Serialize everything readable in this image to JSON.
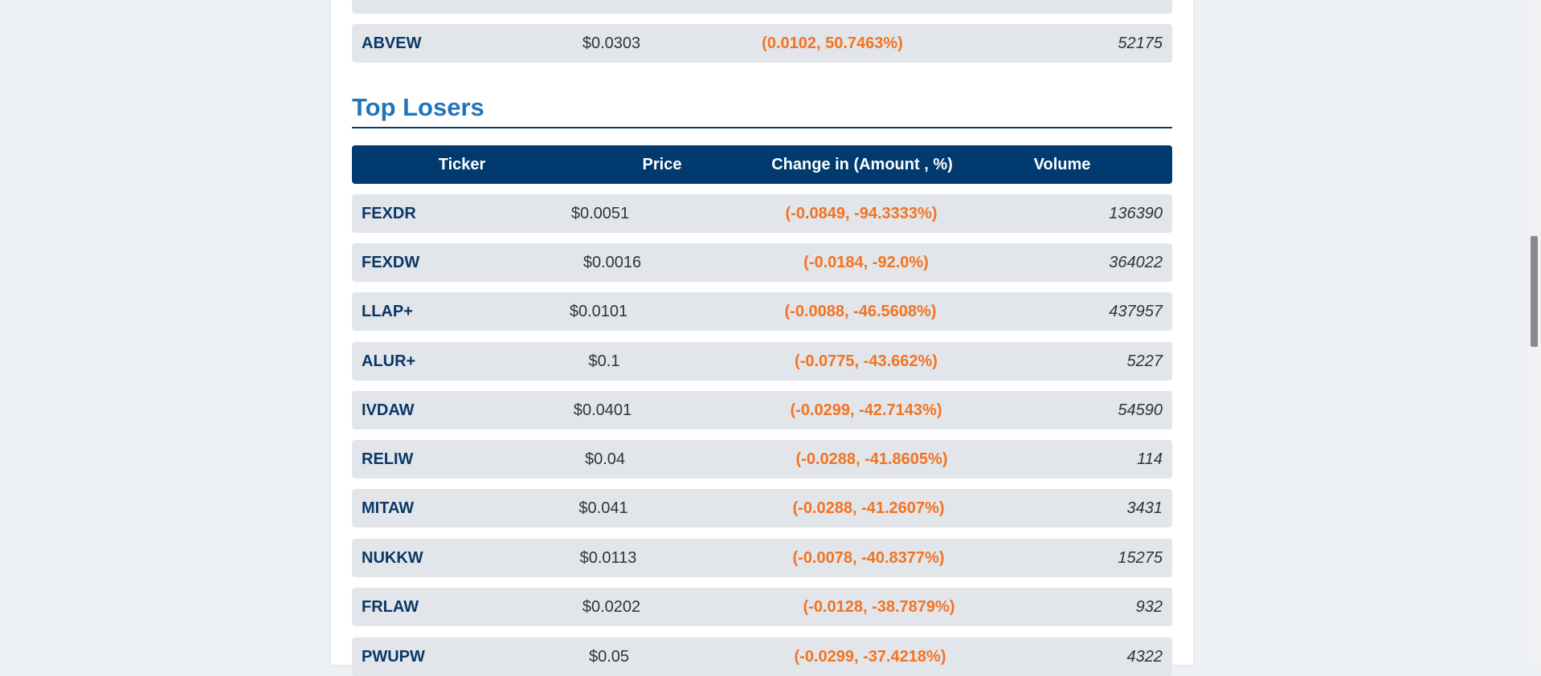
{
  "previous_table": {
    "partial_row": {
      "ticker": "",
      "price": "",
      "change": "",
      "volume": ""
    },
    "last_row": {
      "ticker": "ABVEW",
      "price": "$0.0303",
      "change": "(0.0102, 50.7463%)",
      "volume": "52175"
    }
  },
  "top_losers": {
    "title": "Top Losers",
    "headers": [
      "Ticker",
      "Price",
      "Change in (Amount , %)",
      "Volume"
    ],
    "rows": [
      {
        "ticker": "FEXDR",
        "price": "$0.0051",
        "change": "(-0.0849, -94.3333%)",
        "volume": "136390"
      },
      {
        "ticker": "FEXDW",
        "price": "$0.0016",
        "change": "(-0.0184, -92.0%)",
        "volume": "364022"
      },
      {
        "ticker": "LLAP+",
        "price": "$0.0101",
        "change": "(-0.0088, -46.5608%)",
        "volume": "437957"
      },
      {
        "ticker": "ALUR+",
        "price": "$0.1",
        "change": "(-0.0775, -43.662%)",
        "volume": "5227"
      },
      {
        "ticker": "IVDAW",
        "price": "$0.0401",
        "change": "(-0.0299, -42.7143%)",
        "volume": "54590"
      },
      {
        "ticker": "RELIW",
        "price": "$0.04",
        "change": "(-0.0288, -41.8605%)",
        "volume": "114"
      },
      {
        "ticker": "MITAW",
        "price": "$0.041",
        "change": "(-0.0288, -41.2607%)",
        "volume": "3431"
      },
      {
        "ticker": "NUKKW",
        "price": "$0.0113",
        "change": "(-0.0078, -40.8377%)",
        "volume": "15275"
      },
      {
        "ticker": "FRLAW",
        "price": "$0.0202",
        "change": "(-0.0128, -38.7879%)",
        "volume": "932"
      },
      {
        "ticker": "PWUPW",
        "price": "$0.05",
        "change": "(-0.0299, -37.4218%)",
        "volume": "4322"
      }
    ]
  }
}
